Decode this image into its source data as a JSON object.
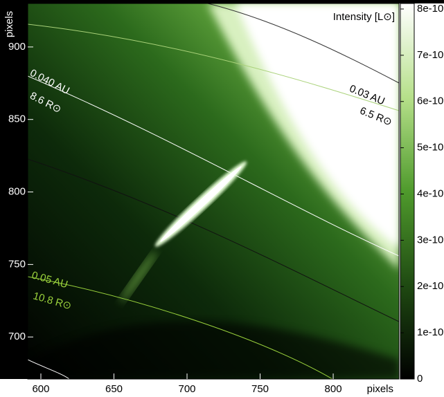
{
  "chart_data": {
    "type": "image",
    "title": "Intensity [L⊙]",
    "x_label": "pixels",
    "y_label": "pixels",
    "xlim": [
      591,
      845
    ],
    "ylim": [
      671,
      930
    ],
    "xticks": [
      600,
      650,
      700,
      750,
      800
    ],
    "yticks": [
      700,
      750,
      800,
      850,
      900
    ],
    "colorbar": {
      "lim": [
        0,
        8e-10
      ],
      "ticks": [
        0,
        {
          "value": 1e-10,
          "label": "1e-10"
        },
        {
          "value": 2e-10,
          "label": "2e-10"
        },
        {
          "value": 3e-10,
          "label": "3e-10"
        },
        {
          "value": 4e-10,
          "label": "4e-10"
        },
        {
          "value": 5e-10,
          "label": "5e-10"
        },
        {
          "value": 6e-10,
          "label": "6e-10"
        },
        {
          "value": 7e-10,
          "label": "7e-10"
        },
        {
          "value": 8e-10,
          "label": "8e-10"
        }
      ],
      "colors": [
        "#000000",
        "#1f4a12",
        "#4f9a2c",
        "#b6e08a",
        "#ffffff"
      ]
    },
    "annotations": [
      {
        "text": "0.040 AU",
        "color": "#ffffff"
      },
      {
        "text": "8.6 R⊙",
        "color": "#ffffff"
      },
      {
        "text": "0.03 AU",
        "color": "#000000"
      },
      {
        "text": "6.5 R⊙",
        "color": "#000000"
      },
      {
        "text": "0.05 AU",
        "color": "#9ad23c"
      },
      {
        "text": "10.8 R⊙",
        "color": "#9ad23c"
      }
    ]
  }
}
